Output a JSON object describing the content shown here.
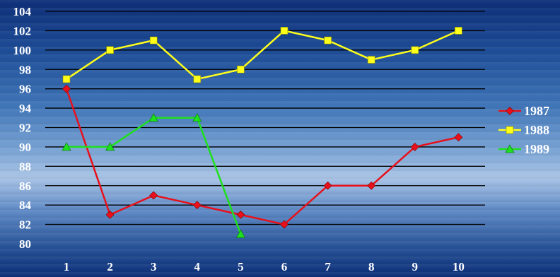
{
  "chart_data": {
    "type": "line",
    "title": "",
    "xlabel": "",
    "ylabel": "",
    "categories": [
      "1",
      "2",
      "3",
      "4",
      "5",
      "6",
      "7",
      "8",
      "9",
      "10"
    ],
    "ylim": [
      80,
      104
    ],
    "yticks": [
      80,
      82,
      84,
      86,
      88,
      90,
      92,
      94,
      96,
      98,
      100,
      102,
      104
    ],
    "grid": true,
    "legend_position": "right",
    "series": [
      {
        "name": "1987",
        "color": "#e8101a",
        "marker": "diamond",
        "values": [
          96,
          83,
          85,
          84,
          83,
          82,
          86,
          86,
          90,
          91
        ]
      },
      {
        "name": "1988",
        "color": "#ffff1a",
        "marker": "square",
        "values": [
          97,
          100,
          101,
          97,
          98,
          102,
          101,
          99,
          100,
          102
        ]
      },
      {
        "name": "1989",
        "color": "#1ee01e",
        "marker": "triangle",
        "values": [
          90,
          90,
          93,
          93,
          81,
          null,
          null,
          null,
          null,
          null
        ]
      }
    ]
  }
}
